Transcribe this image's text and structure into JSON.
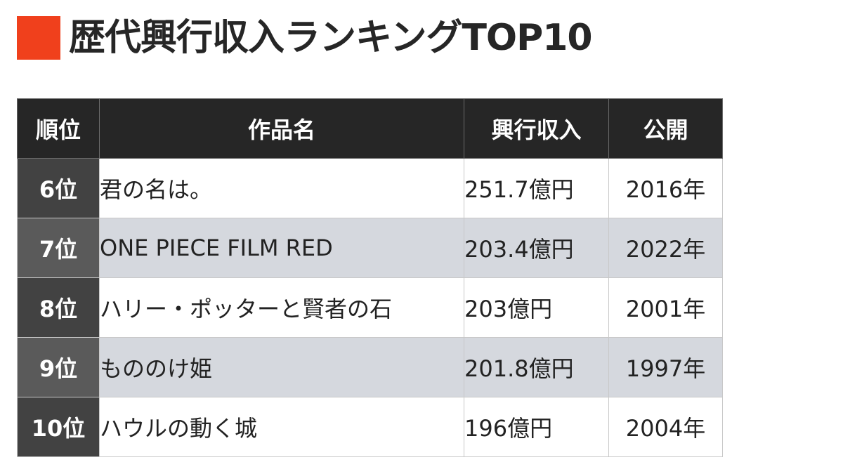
{
  "heading": {
    "title": "歴代興行収入ランキングTOP10",
    "accent_color": "#f0401c"
  },
  "table": {
    "headers": {
      "rank": "順位",
      "title": "作品名",
      "gross": "興行収入",
      "release": "公開"
    },
    "rows": [
      {
        "rank": "6位",
        "title": "君の名は。",
        "gross": "251.7億円",
        "release": "2016年"
      },
      {
        "rank": "7位",
        "title": "ONE PIECE FILM RED",
        "gross": "203.4億円",
        "release": "2022年"
      },
      {
        "rank": "8位",
        "title": "ハリー・ポッターと賢者の石",
        "gross": "203億円",
        "release": "2001年"
      },
      {
        "rank": "9位",
        "title": "もののけ姫",
        "gross": "201.8億円",
        "release": "1997年"
      },
      {
        "rank": "10位",
        "title": "ハウルの動く城",
        "gross": "196億円",
        "release": "2004年"
      }
    ]
  },
  "colors": {
    "header_bg": "#262626",
    "rank_cell_bg": "#424242",
    "shaded_row_bg": "#d5d8de"
  }
}
